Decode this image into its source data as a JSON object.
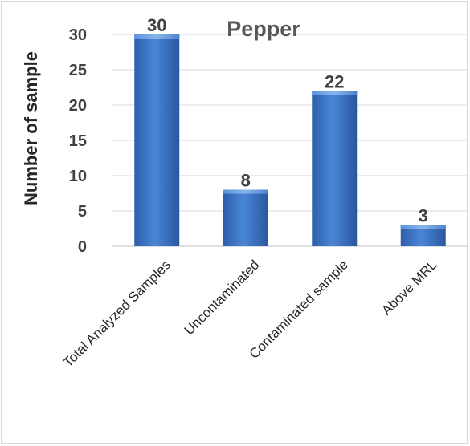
{
  "chart_data": {
    "type": "bar",
    "title": "Pepper",
    "xlabel": "",
    "ylabel": "Number of sample",
    "categories": [
      "Total Analyzed Samples",
      "Uncontaminated",
      "Contaminated sample",
      "Above MRL"
    ],
    "values": [
      30,
      8,
      22,
      3
    ],
    "ylim": [
      0,
      30
    ],
    "yticks": [
      0,
      5,
      10,
      15,
      20,
      25,
      30
    ],
    "grid": true,
    "legend": "none",
    "bar_color": "#3a6fc0"
  }
}
